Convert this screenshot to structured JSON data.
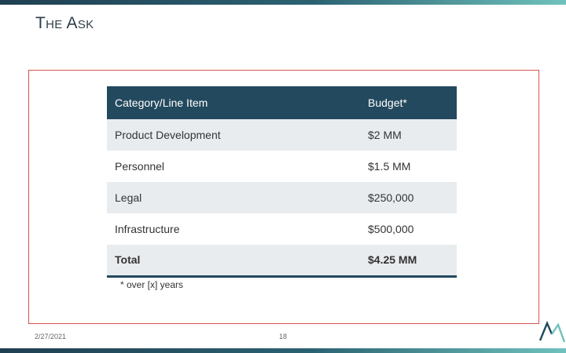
{
  "slide": {
    "title": "The Ask",
    "footnote": "* over [x] years",
    "footer_date": "2/27/2021",
    "page_number": "18"
  },
  "table": {
    "headers": [
      "Category/Line Item",
      "Budget*"
    ],
    "rows": [
      {
        "category": "Product Development",
        "budget": "$2 MM"
      },
      {
        "category": "Personnel",
        "budget": "$1.5 MM"
      },
      {
        "category": "Legal",
        "budget": "$250,000"
      },
      {
        "category": "Infrastructure",
        "budget": "$500,000"
      }
    ],
    "total": {
      "category": "Total",
      "budget": "$4.25 MM"
    }
  },
  "colors": {
    "header_bg": "#23495e",
    "row_shade": "#e9ecef",
    "frame_border": "#d9534f",
    "accent_teal": "#6fc2bd"
  },
  "icons": {
    "logo": "mountain-logo-icon"
  }
}
